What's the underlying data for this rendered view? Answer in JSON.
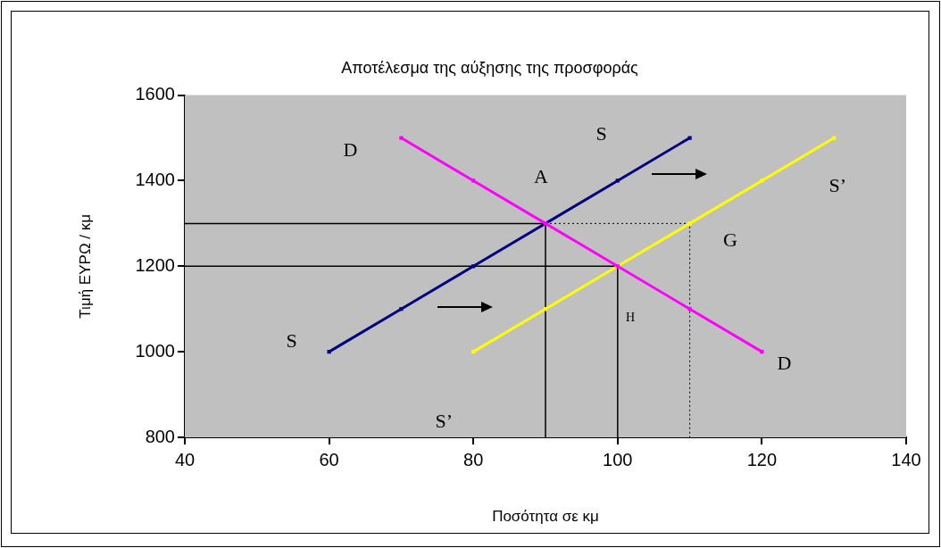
{
  "chart_data": {
    "type": "line",
    "title": "Αποτέλεσμα της αύξησης της προσφοράς",
    "xlabel": "Ποσότητα σε κμ",
    "ylabel": "Τιμή ΕΥΡΩ / κμ",
    "xlim": [
      40,
      140
    ],
    "xticks": [
      40,
      60,
      80,
      100,
      120,
      140
    ],
    "ylim": [
      800,
      1600
    ],
    "yticks": [
      800,
      1000,
      1200,
      1400,
      1600
    ],
    "marker": "square",
    "line_style": "solid",
    "series": [
      {
        "name": "D",
        "color": "#ff00ff",
        "x": [
          70,
          80,
          90,
          100,
          110,
          120
        ],
        "values": [
          1500,
          1400,
          1300,
          1200,
          1100,
          1000
        ]
      },
      {
        "name": "S",
        "color": "#000080",
        "x": [
          60,
          70,
          80,
          90,
          100,
          110
        ],
        "values": [
          1000,
          1100,
          1200,
          1300,
          1400,
          1500
        ]
      },
      {
        "name": "S’",
        "color": "#ffff00",
        "x": [
          80,
          90,
          100,
          110,
          120,
          130
        ],
        "values": [
          1000,
          1100,
          1200,
          1300,
          1400,
          1500
        ]
      },
      {
        "color": "#000000",
        "marker": "none",
        "x": [
          40,
          90,
          90
        ],
        "values": [
          1300,
          1300,
          800
        ]
      },
      {
        "color": "#000000",
        "marker": "none",
        "x": [
          40,
          100,
          100
        ],
        "values": [
          1200,
          1200,
          800
        ]
      },
      {
        "color": "#000000",
        "marker": "none",
        "line_style": "dotted",
        "x": [
          90,
          110,
          110
        ],
        "values": [
          1300,
          1300,
          800
        ]
      }
    ],
    "annotations": [
      "A",
      "G",
      "H"
    ]
  }
}
